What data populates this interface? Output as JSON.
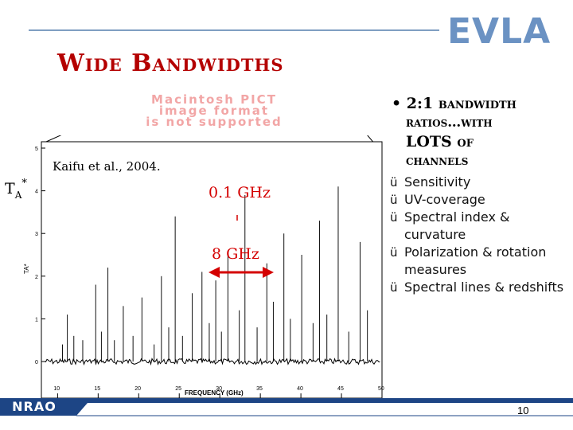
{
  "header": {
    "logo": "EVLA",
    "title": "Wide Bandwidths",
    "pict_notice": [
      "Macintosh PICT",
      "image format",
      "is not supported"
    ]
  },
  "figure": {
    "citation": "Kaifu et al., 2004.",
    "ta_label": "T",
    "ta_sub": "A",
    "ta_sup": "*",
    "annotation_top": "0.1 GHz",
    "annotation_bottom": "8 GHz",
    "annotation_color": "#d40000"
  },
  "chart_data": {
    "type": "line",
    "x_ticks": [
      "10",
      "15",
      "20",
      "25",
      "30",
      "35",
      "40",
      "45",
      "50"
    ],
    "y_ticks": [
      "0",
      "1",
      "2",
      "3",
      "4",
      "5"
    ],
    "y_axis_label": "TA*",
    "xlabel": "FREQUENCY (GHz)",
    "xlim": [
      8,
      50
    ],
    "ylim": [
      0,
      5
    ],
    "line_frequencies": [
      10.6,
      11.2,
      12.0,
      13.1,
      14.7,
      15.4,
      16.2,
      17.0,
      18.1,
      19.3,
      20.4,
      21.9,
      22.8,
      23.7,
      24.5,
      25.4,
      26.6,
      27.8,
      28.7,
      29.5,
      30.2,
      31.0,
      32.4,
      33.1,
      34.6,
      35.8,
      36.6,
      37.9,
      38.7,
      40.1,
      41.5,
      42.3,
      43.2,
      44.6,
      45.9,
      47.3,
      48.2
    ],
    "line_heights": [
      0.4,
      1.1,
      0.6,
      0.5,
      1.8,
      0.7,
      2.2,
      0.5,
      1.3,
      0.6,
      1.5,
      0.4,
      2.0,
      0.8,
      3.4,
      0.6,
      1.6,
      2.1,
      0.9,
      1.9,
      0.7,
      2.6,
      1.2,
      3.9,
      0.8,
      2.3,
      1.4,
      3.0,
      1.0,
      2.5,
      0.9,
      3.3,
      1.1,
      4.1,
      0.7,
      2.8,
      1.2
    ],
    "grid": false
  },
  "bullets": {
    "main_line1": "• 2:1 bandwidth",
    "main_line2": "ratios…with",
    "main_line3": "LOTS of",
    "main_line4": "channels",
    "items": [
      "Sensitivity",
      "UV-coverage",
      "Spectral index & curvature",
      "Polarization & rotation measures",
      "Spectral lines & redshifts"
    ],
    "check_glyph": "ü"
  },
  "footer": {
    "org": "NRAO",
    "page_number": "10",
    "bar_color": "#1d4585"
  }
}
